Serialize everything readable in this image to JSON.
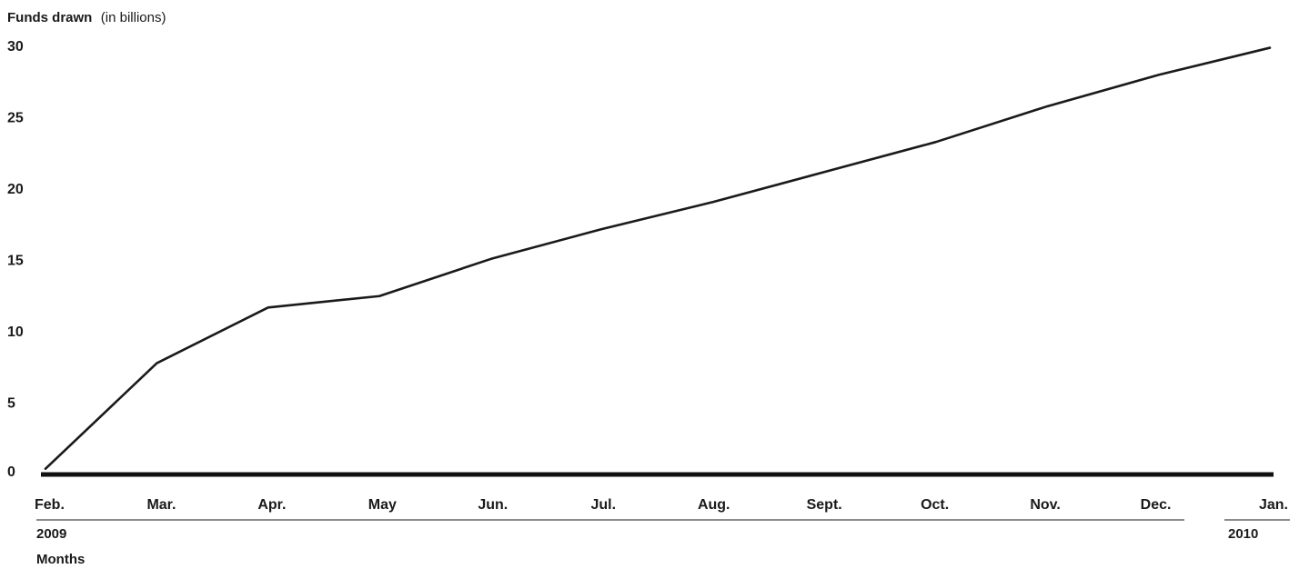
{
  "chart_data": {
    "type": "line",
    "ylabel": "Funds drawn",
    "ylabel_unit": "(in billions)",
    "xlabel": "Months",
    "categories": [
      "Feb.",
      "Mar.",
      "Apr.",
      "May",
      "Jun.",
      "Jul.",
      "Aug.",
      "Sept.",
      "Oct.",
      "Nov.",
      "Dec.",
      "Jan."
    ],
    "years": [
      {
        "label": "2009",
        "start": "Feb.",
        "end": "Dec."
      },
      {
        "label": "2010",
        "start": "Jan.",
        "end": "Jan."
      }
    ],
    "yticks": [
      0,
      5,
      10,
      15,
      20,
      25,
      30
    ],
    "ylim": [
      0,
      30
    ],
    "grid": false,
    "series": [
      {
        "values": [
          0.4,
          7.8,
          11.7,
          12.5,
          15.1,
          17.2,
          19.1,
          21.2,
          23.3,
          25.8,
          28.0,
          29.9
        ],
        "color": "#1a1a1a"
      }
    ],
    "baseline_color": "#111111"
  }
}
